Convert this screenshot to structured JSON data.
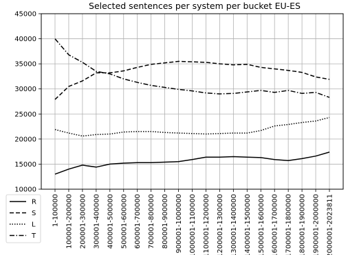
{
  "chart_data": {
    "type": "line",
    "title": "Selected sentences per system per bucket EU-ES",
    "xlabel": "",
    "ylabel": "",
    "ylim": [
      10000,
      45000
    ],
    "yticks": [
      10000,
      15000,
      20000,
      25000,
      30000,
      35000,
      40000,
      45000
    ],
    "grid": true,
    "legend_position": "bottom-left",
    "categories": [
      "1-100000",
      "100001-200000",
      "200001-300000",
      "300001-400000",
      "400001-500000",
      "500001-600000",
      "600001-700000",
      "700001-800000",
      "800001-900000",
      "900001-1000000",
      "1000001-1100000",
      "1100001-1200000",
      "1200001-1300000",
      "1300001-1400000",
      "1400001-1500000",
      "1500001-1600000",
      "1600001-1700000",
      "1700001-1800000",
      "1800001-1900000",
      "1900001-2000000",
      "2000001-2023811"
    ],
    "series": [
      {
        "name": "R",
        "style": "solid",
        "values": [
          13000,
          14000,
          14800,
          14400,
          15000,
          15200,
          15300,
          15300,
          15400,
          15500,
          15900,
          16400,
          16400,
          16500,
          16400,
          16300,
          15900,
          15700,
          16100,
          16600,
          17400
        ]
      },
      {
        "name": "S",
        "style": "dashed",
        "values": [
          27900,
          30500,
          31600,
          33200,
          33200,
          33600,
          34300,
          34900,
          35200,
          35500,
          35400,
          35300,
          35000,
          34800,
          34900,
          34300,
          34000,
          33700,
          33300,
          32400,
          31900
        ]
      },
      {
        "name": "L",
        "style": "dotted",
        "values": [
          21900,
          21200,
          20600,
          20900,
          21000,
          21400,
          21500,
          21500,
          21300,
          21200,
          21100,
          21000,
          21100,
          21200,
          21200,
          21700,
          22600,
          22900,
          23300,
          23600,
          24300
        ]
      },
      {
        "name": "T",
        "style": "dashdot",
        "values": [
          40000,
          36800,
          35300,
          33500,
          33000,
          32000,
          31300,
          30700,
          30300,
          29900,
          29600,
          29200,
          29000,
          29100,
          29400,
          29700,
          29300,
          29700,
          29100,
          29300,
          28300
        ]
      }
    ],
    "colors": {
      "line": "#000000",
      "grid": "#b0b0b0",
      "background": "#ffffff"
    }
  }
}
